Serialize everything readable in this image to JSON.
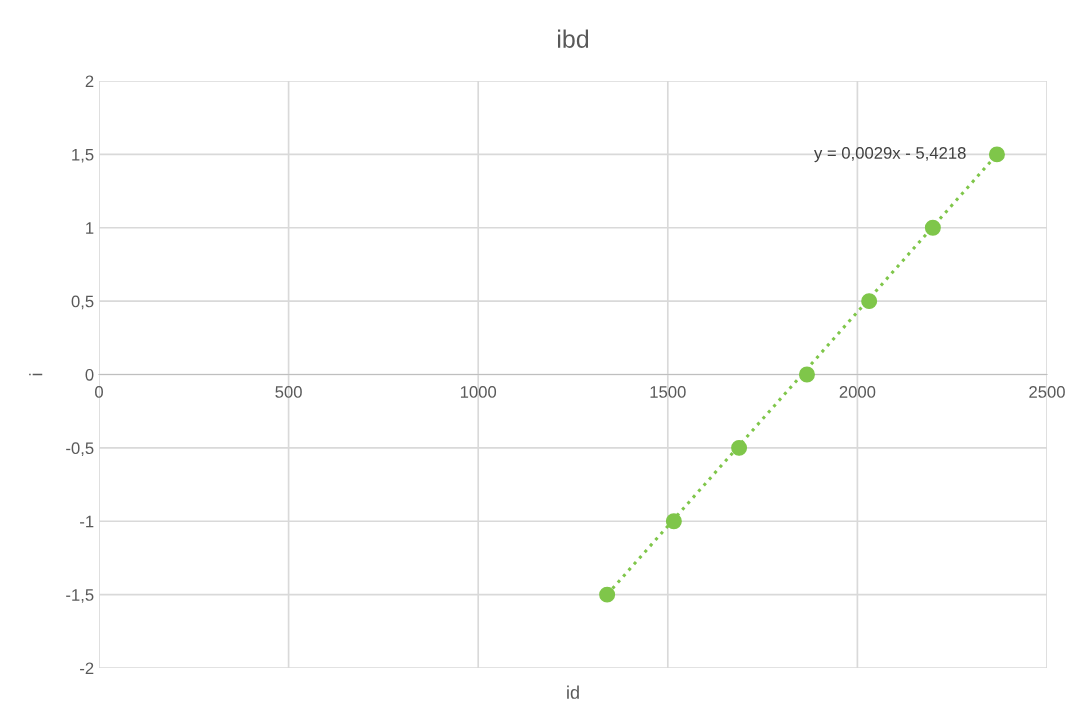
{
  "chart_data": {
    "type": "scatter",
    "title": "ibd",
    "xlabel": "id",
    "ylabel": "i",
    "x": [
      1340,
      1516,
      1688,
      1867,
      2031,
      2199,
      2368
    ],
    "series": [
      {
        "color": "#7fc64a",
        "marker": "circle",
        "values": [
          -1.5,
          -1,
          -0.5,
          0,
          0.5,
          1,
          1.5
        ]
      },
      {
        "type": "line",
        "color": "#7fc64a",
        "line_style": "dotted",
        "marker": "none",
        "x": [
          1340,
          2368
        ],
        "values": [
          -1.5,
          1.5
        ]
      }
    ],
    "annotations": [
      {
        "text": "y = 0,0029x - 5,4218",
        "x": 2368,
        "y": 1.5
      }
    ],
    "xlim": [
      0,
      2500
    ],
    "xticks": [
      0,
      500,
      1000,
      1500,
      2000,
      2500
    ],
    "ylim": [
      -2,
      2
    ],
    "yticks": [
      {
        "value": -2,
        "label": "-2"
      },
      {
        "value": -1.5,
        "label": "-1,5"
      },
      {
        "value": -1,
        "label": "-1"
      },
      {
        "value": -0.5,
        "label": "-0,5"
      },
      {
        "value": 0,
        "label": "0"
      },
      {
        "value": 0.5,
        "label": "0,5"
      },
      {
        "value": 1,
        "label": "1"
      },
      {
        "value": 1.5,
        "label": "1,5"
      },
      {
        "value": 2,
        "label": "2"
      }
    ],
    "grid": true
  }
}
